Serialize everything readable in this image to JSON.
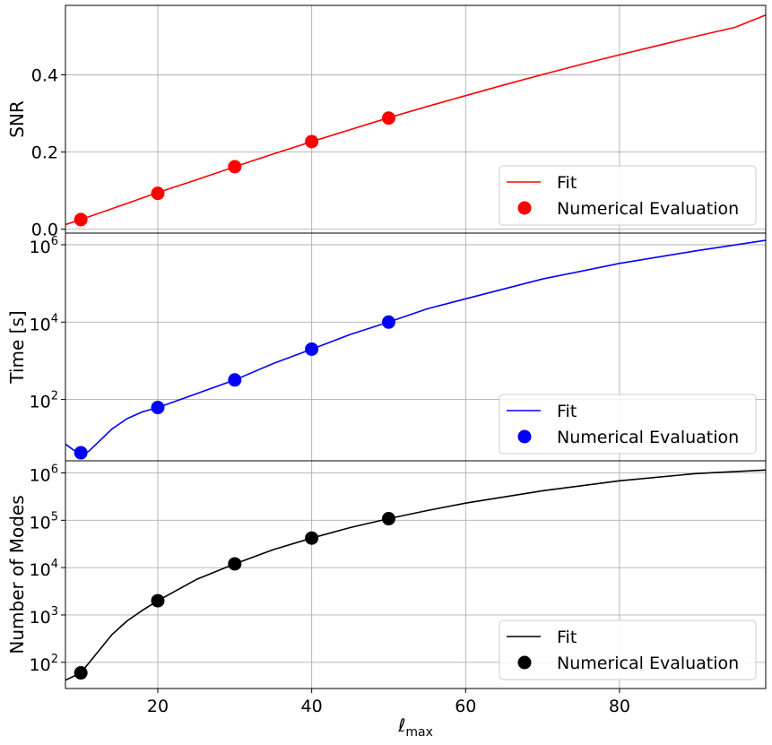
{
  "chart_data": [
    {
      "type": "line",
      "panel": "top",
      "ylabel": "SNR",
      "yscale": "linear",
      "xlim": [
        8,
        99
      ],
      "ylim": [
        -0.01,
        0.58
      ],
      "yticks": [
        0.0,
        0.2,
        0.4
      ],
      "ytick_labels": [
        "0.0",
        "0.2",
        "0.4"
      ],
      "grid": true,
      "color": "#ff0000",
      "legend": {
        "placement": "lower-right",
        "entries": [
          "Fit",
          "Numerical Evaluation"
        ]
      },
      "series": [
        {
          "name": "Fit",
          "kind": "line",
          "x": [
            8,
            10,
            15,
            20,
            25,
            30,
            35,
            40,
            45,
            50,
            55,
            60,
            65,
            70,
            75,
            80,
            85,
            90,
            95,
            99
          ],
          "y": [
            0.012,
            0.025,
            0.06,
            0.095,
            0.128,
            0.162,
            0.195,
            0.227,
            0.258,
            0.289,
            0.318,
            0.346,
            0.374,
            0.401,
            0.427,
            0.452,
            0.476,
            0.5,
            0.523,
            0.555
          ]
        },
        {
          "name": "Numerical Evaluation",
          "kind": "scatter",
          "x": [
            10,
            20,
            30,
            40,
            50
          ],
          "y": [
            0.025,
            0.093,
            0.162,
            0.227,
            0.288
          ]
        }
      ]
    },
    {
      "type": "line",
      "panel": "middle",
      "ylabel": "Time [s]",
      "yscale": "log",
      "xlim": [
        8,
        99
      ],
      "ylim": [
        2.6,
        2000000
      ],
      "yticks": [
        100,
        10000,
        1000000
      ],
      "ytick_labels": [
        "10",
        "10",
        "10"
      ],
      "ytick_exponents": [
        "2",
        "4",
        "6"
      ],
      "grid": true,
      "color": "#0000ff",
      "legend": {
        "placement": "lower-right",
        "entries": [
          "Fit",
          "Numerical Evaluation"
        ]
      },
      "series": [
        {
          "name": "Fit",
          "kind": "line",
          "x": [
            8,
            9,
            10,
            11,
            12,
            14,
            16,
            18,
            20,
            25,
            30,
            35,
            40,
            45,
            50,
            55,
            60,
            70,
            80,
            90,
            99
          ],
          "y": [
            7,
            5,
            4.2,
            4.5,
            7,
            17,
            32,
            48,
            62,
            140,
            320,
            850,
            2000,
            4800,
            10000,
            22000,
            40000,
            130000,
            330000,
            700000,
            1300000
          ]
        },
        {
          "name": "Numerical Evaluation",
          "kind": "scatter",
          "x": [
            10,
            20,
            30,
            40,
            50
          ],
          "y": [
            4.2,
            62,
            320,
            2000,
            10000
          ]
        }
      ]
    },
    {
      "type": "line",
      "panel": "bottom",
      "ylabel": "Number of Modes",
      "xlabel": "ℓ",
      "xlabel_sub": "max",
      "yscale": "log",
      "xlim": [
        8,
        99
      ],
      "ylim": [
        28,
        1800000
      ],
      "yticks": [
        100,
        1000,
        10000,
        100000,
        1000000
      ],
      "ytick_labels": [
        "10",
        "10",
        "10",
        "10",
        "10"
      ],
      "ytick_exponents": [
        "2",
        "3",
        "4",
        "5",
        "6"
      ],
      "xticks": [
        20,
        40,
        60,
        80
      ],
      "xtick_labels": [
        "20",
        "40",
        "60",
        "80"
      ],
      "grid": true,
      "color": "#000000",
      "legend": {
        "placement": "lower-right",
        "entries": [
          "Fit",
          "Numerical Evaluation"
        ]
      },
      "series": [
        {
          "name": "Fit",
          "kind": "line",
          "x": [
            8,
            10,
            12,
            14,
            16,
            18,
            20,
            25,
            30,
            35,
            40,
            45,
            50,
            55,
            60,
            70,
            80,
            90,
            99
          ],
          "y": [
            42,
            60,
            150,
            380,
            750,
            1250,
            2000,
            5600,
            12000,
            24000,
            42000,
            70000,
            108000,
            160000,
            230000,
            420000,
            680000,
            970000,
            1150000
          ]
        },
        {
          "name": "Numerical Evaluation",
          "kind": "scatter",
          "x": [
            10,
            20,
            30,
            40,
            50
          ],
          "y": [
            60,
            2000,
            12000,
            42000,
            108000
          ]
        }
      ]
    }
  ]
}
